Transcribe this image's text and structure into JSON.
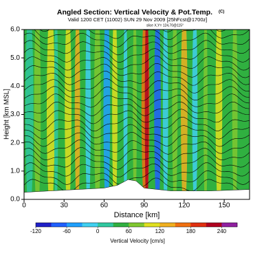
{
  "chart_data": {
    "type": "contour",
    "title": "Angled Section: Vertical Velocity & Pot.Temp.",
    "title_mark": "(C)",
    "subtitle": "Valid 1200 CET (11002) SUN 29 Nov 2009 [25hFcst@1700z]",
    "slice": "slice X,Y= 124,70@115°",
    "xlabel": "Distance [km]",
    "ylabel": "Height [km MSL]",
    "xlim": [
      0,
      169
    ],
    "xticks": [
      0,
      30,
      60,
      90,
      120,
      150
    ],
    "ylim": [
      0,
      6
    ],
    "yticks": [
      {
        "value": 0,
        "label": "0.0"
      },
      {
        "value": 1,
        "label": "1.0"
      },
      {
        "value": 2,
        "label": "2.0"
      },
      {
        "value": 3,
        "label": "3.0"
      },
      {
        "value": 4,
        "label": "4.0"
      },
      {
        "value": 5,
        "label": "5.0"
      },
      {
        "value": 6,
        "label": "6.0"
      }
    ],
    "colorbar": {
      "label": "Vertical Velocity [cm/s]",
      "lim": [
        -120,
        270
      ],
      "ticks": [
        -120,
        -60,
        0,
        60,
        120,
        180,
        240
      ],
      "colors": [
        "#2020c8",
        "#2060ff",
        "#20a0ff",
        "#40d0f0",
        "#30c8a0",
        "#30b040",
        "#80c830",
        "#e0e020",
        "#f0b020",
        "#f07010",
        "#e03010",
        "#b00020",
        "#9020a0"
      ]
    }
  }
}
